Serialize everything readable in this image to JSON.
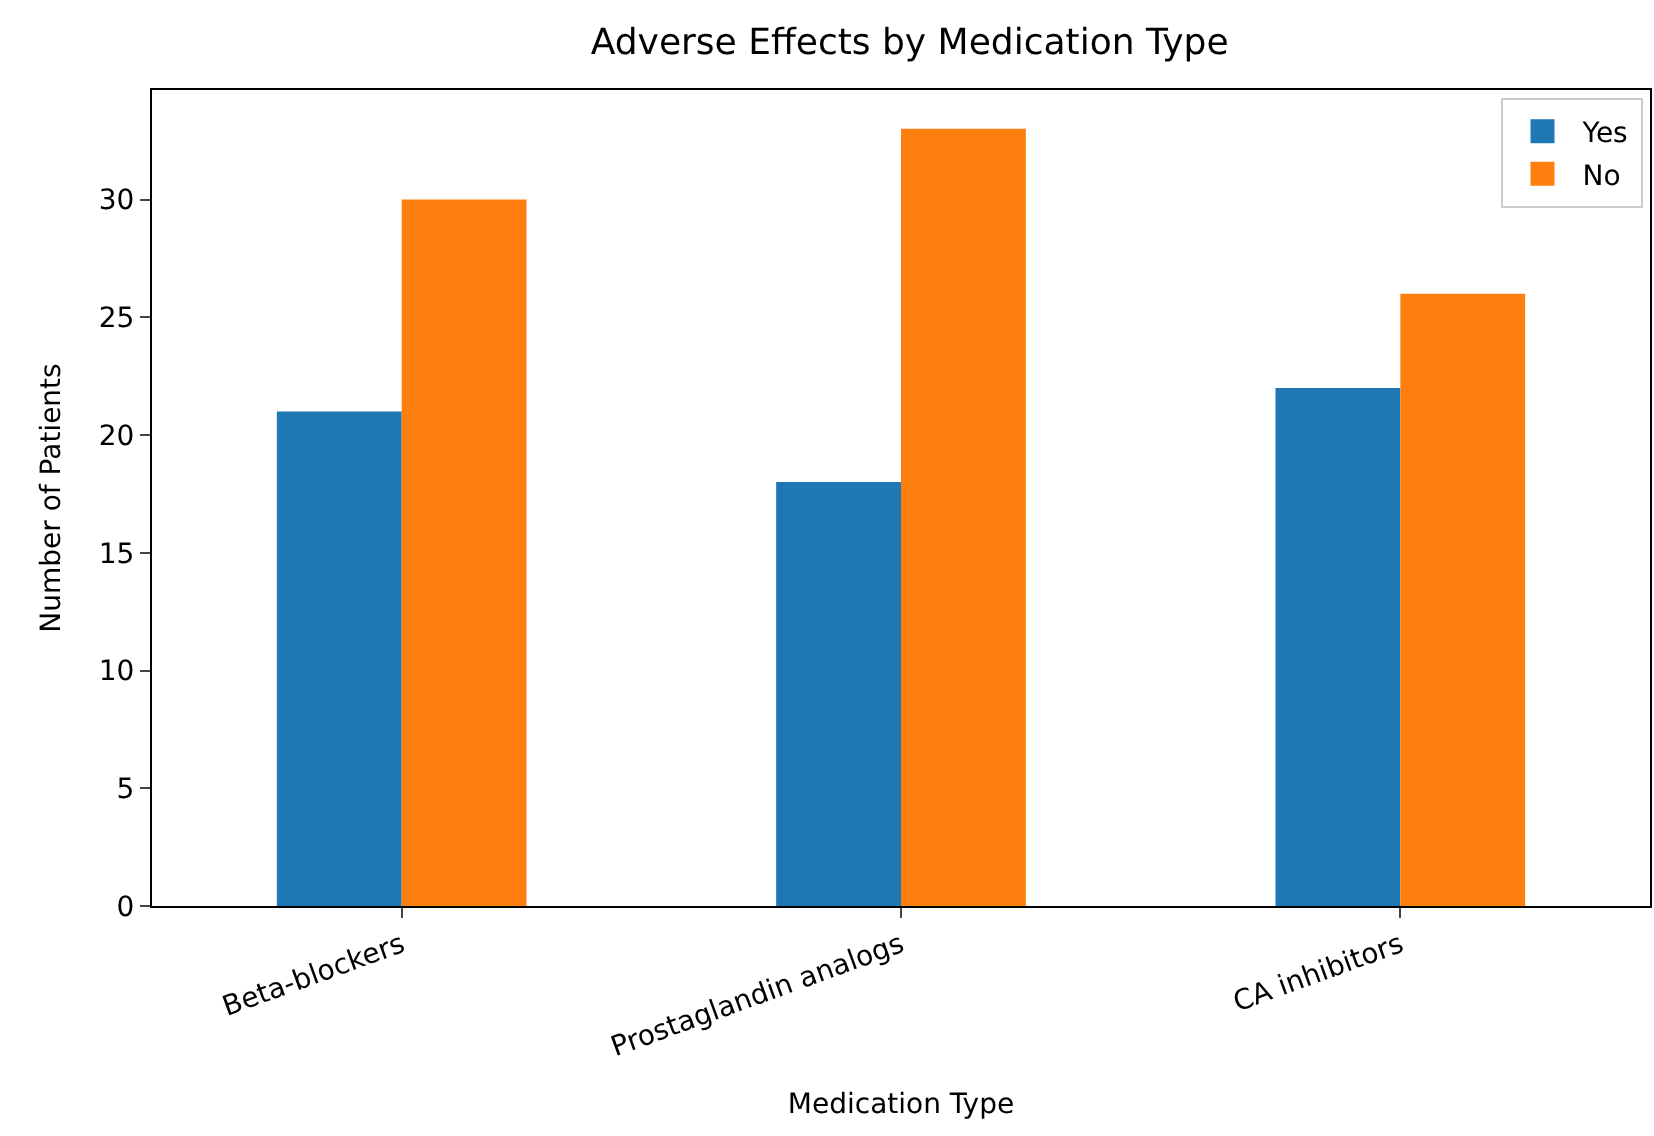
{
  "chart_data": {
    "type": "bar",
    "title": "Adverse Effects by Medication Type",
    "xlabel": "Medication Type",
    "ylabel": "Number of Patients",
    "categories": [
      "Beta-blockers",
      "Prostaglandin analogs",
      "CA inhibitors"
    ],
    "series": [
      {
        "name": "Yes",
        "color": "#1f77b4",
        "values": [
          21,
          18,
          22
        ]
      },
      {
        "name": "No",
        "color": "#ff7f0e",
        "values": [
          30,
          33,
          26
        ]
      }
    ],
    "ylim": [
      0,
      34.65
    ],
    "yticks": [
      0,
      5,
      10,
      15,
      20,
      25,
      30
    ],
    "grid": false,
    "legend": "top right"
  }
}
